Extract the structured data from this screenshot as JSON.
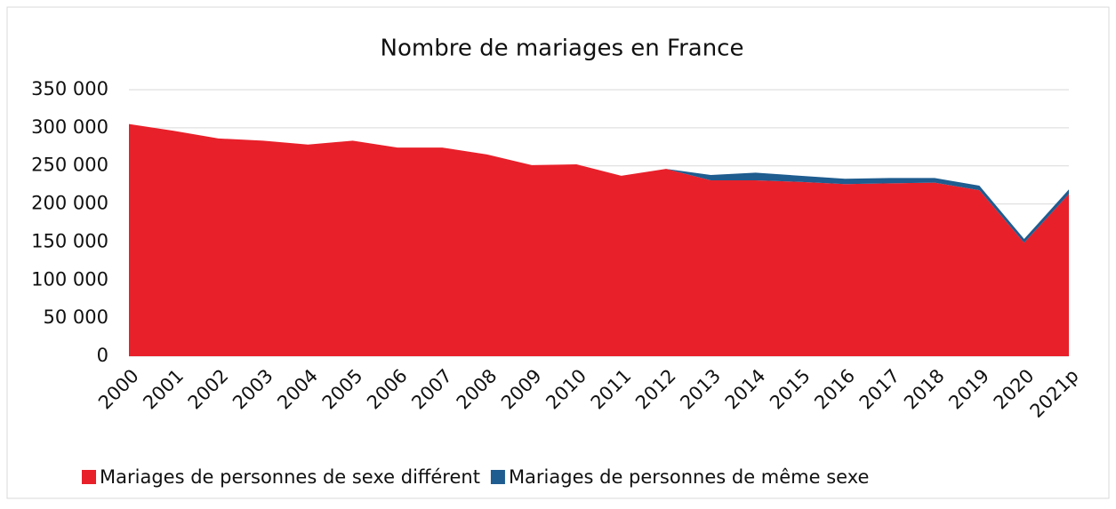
{
  "chart_data": {
    "type": "stacked_area",
    "title": "Nombre de mariages en France",
    "categories": [
      "2000",
      "2001",
      "2002",
      "2003",
      "2004",
      "2005",
      "2006",
      "2007",
      "2008",
      "2009",
      "2010",
      "2011",
      "2012",
      "2013",
      "2014",
      "2015",
      "2016",
      "2017",
      "2018",
      "2019",
      "2020",
      "2021p"
    ],
    "series": [
      {
        "name": "Mariages de personnes de sexe différent",
        "color": "#e8202a",
        "values": [
          305000,
          296000,
          286000,
          283000,
          278000,
          283000,
          274000,
          274000,
          265000,
          251000,
          252000,
          237000,
          246000,
          231000,
          231000,
          229000,
          226000,
          227000,
          228000,
          218000,
          149000,
          213000
        ]
      },
      {
        "name": "Mariages de personnes de même sexe",
        "color": "#1f5c8f",
        "values": [
          0,
          0,
          0,
          0,
          0,
          0,
          0,
          0,
          0,
          0,
          0,
          0,
          0,
          7000,
          10000,
          8000,
          7000,
          7000,
          6000,
          6000,
          5000,
          6000
        ]
      }
    ],
    "ylim": [
      0,
      350000
    ],
    "yticks": [
      0,
      {
        "value": 50000,
        "label": "50 000"
      },
      {
        "value": 100000,
        "label": "100 000"
      },
      {
        "value": 150000,
        "label": "150 000"
      },
      {
        "value": 200000,
        "label": "200 000"
      },
      {
        "value": 250000,
        "label": "250 000"
      },
      {
        "value": 300000,
        "label": "300 000"
      },
      {
        "value": 350000,
        "label": "350 000"
      }
    ],
    "grid": true,
    "legend": "bottom"
  }
}
